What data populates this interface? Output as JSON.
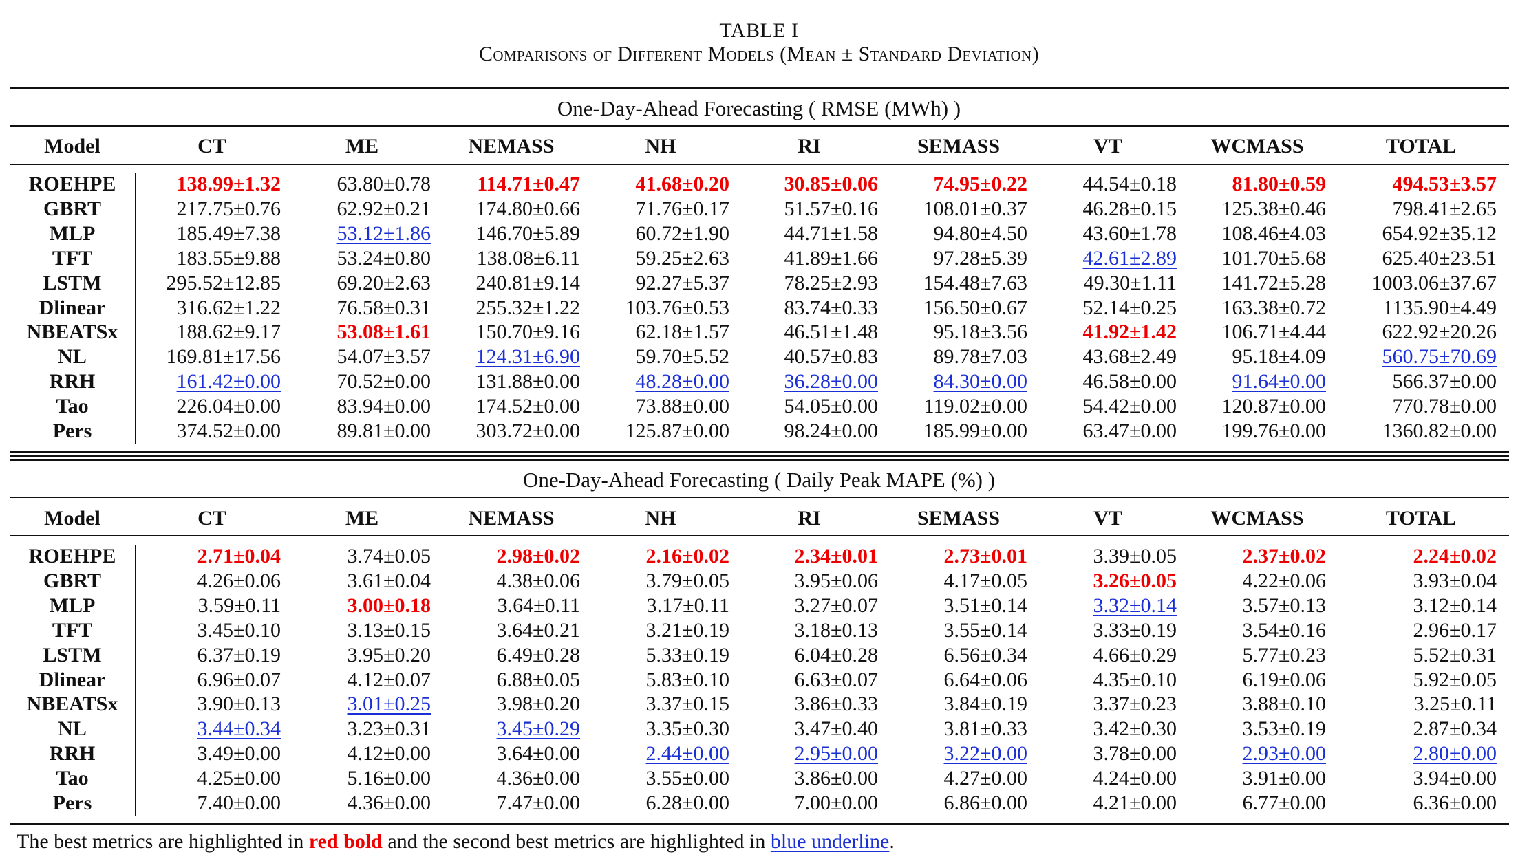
{
  "caption": {
    "label": "TABLE I",
    "title": "Comparisons of Different Models (Mean ± Standard Deviation)"
  },
  "columns": [
    "Model",
    "CT",
    "ME",
    "NEMASS",
    "NH",
    "RI",
    "SEMASS",
    "VT",
    "WCMASS",
    "TOTAL"
  ],
  "sections": [
    {
      "title": "One-Day-Ahead Forecasting ( RMSE (MWh) )",
      "rows": [
        {
          "model": "ROEHPE",
          "cells": [
            {
              "v": "138.99±1.32",
              "s": "best"
            },
            {
              "v": "63.80±0.78",
              "s": ""
            },
            {
              "v": "114.71±0.47",
              "s": "best"
            },
            {
              "v": "41.68±0.20",
              "s": "best"
            },
            {
              "v": "30.85±0.06",
              "s": "best"
            },
            {
              "v": "74.95±0.22",
              "s": "best"
            },
            {
              "v": "44.54±0.18",
              "s": ""
            },
            {
              "v": "81.80±0.59",
              "s": "best"
            },
            {
              "v": "494.53±3.57",
              "s": "best"
            }
          ]
        },
        {
          "model": "GBRT",
          "cells": [
            {
              "v": "217.75±0.76",
              "s": ""
            },
            {
              "v": "62.92±0.21",
              "s": ""
            },
            {
              "v": "174.80±0.66",
              "s": ""
            },
            {
              "v": "71.76±0.17",
              "s": ""
            },
            {
              "v": "51.57±0.16",
              "s": ""
            },
            {
              "v": "108.01±0.37",
              "s": ""
            },
            {
              "v": "46.28±0.15",
              "s": ""
            },
            {
              "v": "125.38±0.46",
              "s": ""
            },
            {
              "v": "798.41±2.65",
              "s": ""
            }
          ]
        },
        {
          "model": "MLP",
          "cells": [
            {
              "v": "185.49±7.38",
              "s": ""
            },
            {
              "v": "53.12±1.86",
              "s": "second"
            },
            {
              "v": "146.70±5.89",
              "s": ""
            },
            {
              "v": "60.72±1.90",
              "s": ""
            },
            {
              "v": "44.71±1.58",
              "s": ""
            },
            {
              "v": "94.80±4.50",
              "s": ""
            },
            {
              "v": "43.60±1.78",
              "s": ""
            },
            {
              "v": "108.46±4.03",
              "s": ""
            },
            {
              "v": "654.92±35.12",
              "s": ""
            }
          ]
        },
        {
          "model": "TFT",
          "cells": [
            {
              "v": "183.55±9.88",
              "s": ""
            },
            {
              "v": "53.24±0.80",
              "s": ""
            },
            {
              "v": "138.08±6.11",
              "s": ""
            },
            {
              "v": "59.25±2.63",
              "s": ""
            },
            {
              "v": "41.89±1.66",
              "s": ""
            },
            {
              "v": "97.28±5.39",
              "s": ""
            },
            {
              "v": "42.61±2.89",
              "s": "second"
            },
            {
              "v": "101.70±5.68",
              "s": ""
            },
            {
              "v": "625.40±23.51",
              "s": ""
            }
          ]
        },
        {
          "model": "LSTM",
          "cells": [
            {
              "v": "295.52±12.85",
              "s": ""
            },
            {
              "v": "69.20±2.63",
              "s": ""
            },
            {
              "v": "240.81±9.14",
              "s": ""
            },
            {
              "v": "92.27±5.37",
              "s": ""
            },
            {
              "v": "78.25±2.93",
              "s": ""
            },
            {
              "v": "154.48±7.63",
              "s": ""
            },
            {
              "v": "49.30±1.11",
              "s": ""
            },
            {
              "v": "141.72±5.28",
              "s": ""
            },
            {
              "v": "1003.06±37.67",
              "s": ""
            }
          ]
        },
        {
          "model": "Dlinear",
          "cells": [
            {
              "v": "316.62±1.22",
              "s": ""
            },
            {
              "v": "76.58±0.31",
              "s": ""
            },
            {
              "v": "255.32±1.22",
              "s": ""
            },
            {
              "v": "103.76±0.53",
              "s": ""
            },
            {
              "v": "83.74±0.33",
              "s": ""
            },
            {
              "v": "156.50±0.67",
              "s": ""
            },
            {
              "v": "52.14±0.25",
              "s": ""
            },
            {
              "v": "163.38±0.72",
              "s": ""
            },
            {
              "v": "1135.90±4.49",
              "s": ""
            }
          ]
        },
        {
          "model": "NBEATSx",
          "cells": [
            {
              "v": "188.62±9.17",
              "s": ""
            },
            {
              "v": "53.08±1.61",
              "s": "best"
            },
            {
              "v": "150.70±9.16",
              "s": ""
            },
            {
              "v": "62.18±1.57",
              "s": ""
            },
            {
              "v": "46.51±1.48",
              "s": ""
            },
            {
              "v": "95.18±3.56",
              "s": ""
            },
            {
              "v": "41.92±1.42",
              "s": "best"
            },
            {
              "v": "106.71±4.44",
              "s": ""
            },
            {
              "v": "622.92±20.26",
              "s": ""
            }
          ]
        },
        {
          "model": "NL",
          "cells": [
            {
              "v": "169.81±17.56",
              "s": ""
            },
            {
              "v": "54.07±3.57",
              "s": ""
            },
            {
              "v": "124.31±6.90",
              "s": "second"
            },
            {
              "v": "59.70±5.52",
              "s": ""
            },
            {
              "v": "40.57±0.83",
              "s": ""
            },
            {
              "v": "89.78±7.03",
              "s": ""
            },
            {
              "v": "43.68±2.49",
              "s": ""
            },
            {
              "v": "95.18±4.09",
              "s": ""
            },
            {
              "v": "560.75±70.69",
              "s": "second"
            }
          ]
        },
        {
          "model": "RRH",
          "cells": [
            {
              "v": "161.42±0.00",
              "s": "second"
            },
            {
              "v": "70.52±0.00",
              "s": ""
            },
            {
              "v": "131.88±0.00",
              "s": ""
            },
            {
              "v": "48.28±0.00",
              "s": "second"
            },
            {
              "v": "36.28±0.00",
              "s": "second"
            },
            {
              "v": "84.30±0.00",
              "s": "second"
            },
            {
              "v": "46.58±0.00",
              "s": ""
            },
            {
              "v": "91.64±0.00",
              "s": "second"
            },
            {
              "v": "566.37±0.00",
              "s": ""
            }
          ]
        },
        {
          "model": "Tao",
          "cells": [
            {
              "v": "226.04±0.00",
              "s": ""
            },
            {
              "v": "83.94±0.00",
              "s": ""
            },
            {
              "v": "174.52±0.00",
              "s": ""
            },
            {
              "v": "73.88±0.00",
              "s": ""
            },
            {
              "v": "54.05±0.00",
              "s": ""
            },
            {
              "v": "119.02±0.00",
              "s": ""
            },
            {
              "v": "54.42±0.00",
              "s": ""
            },
            {
              "v": "120.87±0.00",
              "s": ""
            },
            {
              "v": "770.78±0.00",
              "s": ""
            }
          ]
        },
        {
          "model": "Pers",
          "cells": [
            {
              "v": "374.52±0.00",
              "s": ""
            },
            {
              "v": "89.81±0.00",
              "s": ""
            },
            {
              "v": "303.72±0.00",
              "s": ""
            },
            {
              "v": "125.87±0.00",
              "s": ""
            },
            {
              "v": "98.24±0.00",
              "s": ""
            },
            {
              "v": "185.99±0.00",
              "s": ""
            },
            {
              "v": "63.47±0.00",
              "s": ""
            },
            {
              "v": "199.76±0.00",
              "s": ""
            },
            {
              "v": "1360.82±0.00",
              "s": ""
            }
          ]
        }
      ]
    },
    {
      "title": "One-Day-Ahead Forecasting ( Daily Peak MAPE (%) )",
      "rows": [
        {
          "model": "ROEHPE",
          "cells": [
            {
              "v": "2.71±0.04",
              "s": "best"
            },
            {
              "v": "3.74±0.05",
              "s": ""
            },
            {
              "v": "2.98±0.02",
              "s": "best"
            },
            {
              "v": "2.16±0.02",
              "s": "best"
            },
            {
              "v": "2.34±0.01",
              "s": "best"
            },
            {
              "v": "2.73±0.01",
              "s": "best"
            },
            {
              "v": "3.39±0.05",
              "s": ""
            },
            {
              "v": "2.37±0.02",
              "s": "best"
            },
            {
              "v": "2.24±0.02",
              "s": "best"
            }
          ]
        },
        {
          "model": "GBRT",
          "cells": [
            {
              "v": "4.26±0.06",
              "s": ""
            },
            {
              "v": "3.61±0.04",
              "s": ""
            },
            {
              "v": "4.38±0.06",
              "s": ""
            },
            {
              "v": "3.79±0.05",
              "s": ""
            },
            {
              "v": "3.95±0.06",
              "s": ""
            },
            {
              "v": "4.17±0.05",
              "s": ""
            },
            {
              "v": "3.26±0.05",
              "s": "best"
            },
            {
              "v": "4.22±0.06",
              "s": ""
            },
            {
              "v": "3.93±0.04",
              "s": ""
            }
          ]
        },
        {
          "model": "MLP",
          "cells": [
            {
              "v": "3.59±0.11",
              "s": ""
            },
            {
              "v": "3.00±0.18",
              "s": "best"
            },
            {
              "v": "3.64±0.11",
              "s": ""
            },
            {
              "v": "3.17±0.11",
              "s": ""
            },
            {
              "v": "3.27±0.07",
              "s": ""
            },
            {
              "v": "3.51±0.14",
              "s": ""
            },
            {
              "v": "3.32±0.14",
              "s": "second"
            },
            {
              "v": "3.57±0.13",
              "s": ""
            },
            {
              "v": "3.12±0.14",
              "s": ""
            }
          ]
        },
        {
          "model": "TFT",
          "cells": [
            {
              "v": "3.45±0.10",
              "s": ""
            },
            {
              "v": "3.13±0.15",
              "s": ""
            },
            {
              "v": "3.64±0.21",
              "s": ""
            },
            {
              "v": "3.21±0.19",
              "s": ""
            },
            {
              "v": "3.18±0.13",
              "s": ""
            },
            {
              "v": "3.55±0.14",
              "s": ""
            },
            {
              "v": "3.33±0.19",
              "s": ""
            },
            {
              "v": "3.54±0.16",
              "s": ""
            },
            {
              "v": "2.96±0.17",
              "s": ""
            }
          ]
        },
        {
          "model": "LSTM",
          "cells": [
            {
              "v": "6.37±0.19",
              "s": ""
            },
            {
              "v": "3.95±0.20",
              "s": ""
            },
            {
              "v": "6.49±0.28",
              "s": ""
            },
            {
              "v": "5.33±0.19",
              "s": ""
            },
            {
              "v": "6.04±0.28",
              "s": ""
            },
            {
              "v": "6.56±0.34",
              "s": ""
            },
            {
              "v": "4.66±0.29",
              "s": ""
            },
            {
              "v": "5.77±0.23",
              "s": ""
            },
            {
              "v": "5.52±0.31",
              "s": ""
            }
          ]
        },
        {
          "model": "Dlinear",
          "cells": [
            {
              "v": "6.96±0.07",
              "s": ""
            },
            {
              "v": "4.12±0.07",
              "s": ""
            },
            {
              "v": "6.88±0.05",
              "s": ""
            },
            {
              "v": "5.83±0.10",
              "s": ""
            },
            {
              "v": "6.63±0.07",
              "s": ""
            },
            {
              "v": "6.64±0.06",
              "s": ""
            },
            {
              "v": "4.35±0.10",
              "s": ""
            },
            {
              "v": "6.19±0.06",
              "s": ""
            },
            {
              "v": "5.92±0.05",
              "s": ""
            }
          ]
        },
        {
          "model": "NBEATSx",
          "cells": [
            {
              "v": "3.90±0.13",
              "s": ""
            },
            {
              "v": "3.01±0.25",
              "s": "second"
            },
            {
              "v": "3.98±0.20",
              "s": ""
            },
            {
              "v": "3.37±0.15",
              "s": ""
            },
            {
              "v": "3.86±0.33",
              "s": ""
            },
            {
              "v": "3.84±0.19",
              "s": ""
            },
            {
              "v": "3.37±0.23",
              "s": ""
            },
            {
              "v": "3.88±0.10",
              "s": ""
            },
            {
              "v": "3.25±0.11",
              "s": ""
            }
          ]
        },
        {
          "model": "NL",
          "cells": [
            {
              "v": "3.44±0.34",
              "s": "second"
            },
            {
              "v": "3.23±0.31",
              "s": ""
            },
            {
              "v": "3.45±0.29",
              "s": "second"
            },
            {
              "v": "3.35±0.30",
              "s": ""
            },
            {
              "v": "3.47±0.40",
              "s": ""
            },
            {
              "v": "3.81±0.33",
              "s": ""
            },
            {
              "v": "3.42±0.30",
              "s": ""
            },
            {
              "v": "3.53±0.19",
              "s": ""
            },
            {
              "v": "2.87±0.34",
              "s": ""
            }
          ]
        },
        {
          "model": "RRH",
          "cells": [
            {
              "v": "3.49±0.00",
              "s": ""
            },
            {
              "v": "4.12±0.00",
              "s": ""
            },
            {
              "v": "3.64±0.00",
              "s": ""
            },
            {
              "v": "2.44±0.00",
              "s": "second"
            },
            {
              "v": "2.95±0.00",
              "s": "second"
            },
            {
              "v": "3.22±0.00",
              "s": "second"
            },
            {
              "v": "3.78±0.00",
              "s": ""
            },
            {
              "v": "2.93±0.00",
              "s": "second"
            },
            {
              "v": "2.80±0.00",
              "s": "second"
            }
          ]
        },
        {
          "model": "Tao",
          "cells": [
            {
              "v": "4.25±0.00",
              "s": ""
            },
            {
              "v": "5.16±0.00",
              "s": ""
            },
            {
              "v": "4.36±0.00",
              "s": ""
            },
            {
              "v": "3.55±0.00",
              "s": ""
            },
            {
              "v": "3.86±0.00",
              "s": ""
            },
            {
              "v": "4.27±0.00",
              "s": ""
            },
            {
              "v": "4.24±0.00",
              "s": ""
            },
            {
              "v": "3.91±0.00",
              "s": ""
            },
            {
              "v": "3.94±0.00",
              "s": ""
            }
          ]
        },
        {
          "model": "Pers",
          "cells": [
            {
              "v": "7.40±0.00",
              "s": ""
            },
            {
              "v": "4.36±0.00",
              "s": ""
            },
            {
              "v": "7.47±0.00",
              "s": ""
            },
            {
              "v": "6.28±0.00",
              "s": ""
            },
            {
              "v": "7.00±0.00",
              "s": ""
            },
            {
              "v": "6.86±0.00",
              "s": ""
            },
            {
              "v": "4.21±0.00",
              "s": ""
            },
            {
              "v": "6.77±0.00",
              "s": ""
            },
            {
              "v": "6.36±0.00",
              "s": ""
            }
          ]
        }
      ]
    }
  ],
  "footnote": {
    "prefix": "The best metrics are highlighted in",
    "best_style": "red bold",
    "middle": "and the second best metrics are highlighted in",
    "second_style": "blue underline",
    "suffix": "."
  }
}
